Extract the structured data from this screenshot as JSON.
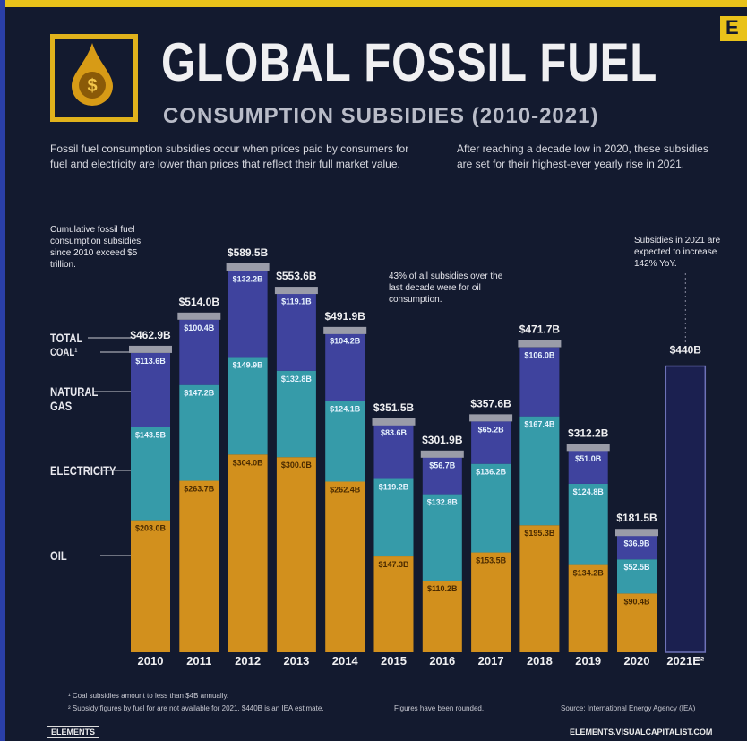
{
  "header": {
    "title": "GLOBAL FOSSIL FUEL",
    "subtitle": "CONSUMPTION SUBSIDIES (2010-2021)",
    "logo_corner": "E"
  },
  "intro": [
    "Fossil fuel consumption subsidies occur when prices paid by consumers for fuel and electricity are lower than prices that reflect their full market value.",
    "After reaching a decade low in 2020, these subsidies are set for their highest-ever yearly rise in 2021."
  ],
  "chart_data": {
    "type": "stacked_bar",
    "categories": [
      "2010",
      "2011",
      "2012",
      "2013",
      "2014",
      "2015",
      "2016",
      "2017",
      "2018",
      "2019",
      "2020",
      "2021E²"
    ],
    "series": [
      {
        "name": "COAL¹",
        "color": "#5b5d70",
        "values": [
          null,
          null,
          null,
          null,
          null,
          null,
          null,
          null,
          null,
          null,
          null,
          null
        ]
      },
      {
        "name": "NATURAL GAS",
        "color": "#4346a8",
        "values": [
          113.6,
          100.4,
          132.2,
          119.1,
          104.2,
          83.6,
          56.7,
          65.2,
          106.0,
          51.0,
          36.9,
          null
        ],
        "value_labels": [
          "$113.6B",
          "$100.4B",
          "$132.2B",
          "$119.1B",
          "$104.2B",
          "$83.6B",
          "$56.7B",
          "$65.2B",
          "$106.0B",
          "$51.0B",
          "$36.9B",
          null
        ]
      },
      {
        "name": "ELECTRICITY",
        "color": "#3aa6b4",
        "values": [
          143.5,
          147.2,
          149.9,
          132.8,
          124.1,
          119.2,
          132.8,
          136.2,
          167.4,
          124.8,
          52.5,
          null
        ],
        "value_labels": [
          "$143.5B",
          "$147.2B",
          "$149.9B",
          "$132.8B",
          "$124.1B",
          "$119.2B",
          "$132.8B",
          "$136.2B",
          "$167.4B",
          "$124.8B",
          "$52.5B",
          null
        ]
      },
      {
        "name": "OIL",
        "color": "#e39a1c",
        "values": [
          203.0,
          263.7,
          304.0,
          300.0,
          262.4,
          147.3,
          110.2,
          153.5,
          195.3,
          134.2,
          90.4,
          null
        ],
        "value_labels": [
          "$203.0B",
          "$263.7B",
          "$304.0B",
          "$300.0B",
          "$262.4B",
          "$147.3B",
          "$110.2B",
          "$153.5B",
          "$195.3B",
          "$134.2B",
          "$90.4B",
          null
        ]
      }
    ],
    "total_name": "TOTAL",
    "totals": [
      462.9,
      514.0,
      589.5,
      553.6,
      491.9,
      351.5,
      301.9,
      357.6,
      471.7,
      312.2,
      181.5,
      440
    ],
    "total_labels": [
      "$462.9B",
      "$514.0B",
      "$589.5B",
      "$553.6B",
      "$491.9B",
      "$351.5B",
      "$301.9B",
      "$357.6B",
      "$471.7B",
      "$312.2B",
      "$181.5B",
      "$440B"
    ],
    "annotations": [
      "Cumulative fossil fuel consumption subsidies since 2010 exceed $5 trillion.",
      "43% of all subsidies over the last decade were for oil consumption.",
      "Subsidies in 2021 are expected to increase 142% YoY."
    ]
  },
  "footer": {
    "notes": [
      "¹ Coal subsidies amount to less than $4B annually.",
      "² Subsidy figures by fuel for are not available for 2021. $440B is an IEA estimate."
    ],
    "rounded": "Figures have been rounded.",
    "source": "Source: International Energy Agency (IEA)",
    "brand": "ELEMENTS",
    "url": "ELEMENTS.VISUALCAPITALIST.COM"
  }
}
